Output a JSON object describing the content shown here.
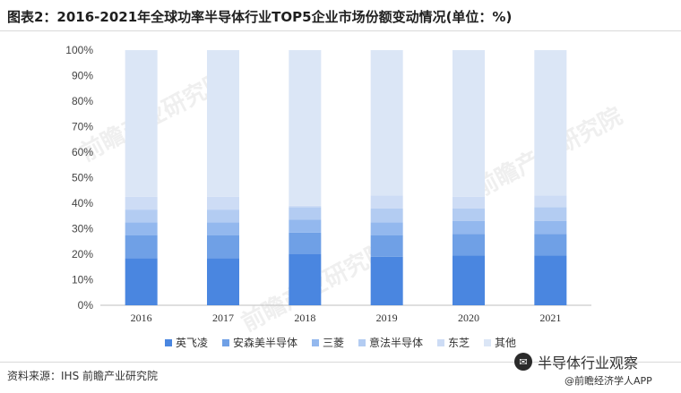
{
  "title": "图表2：2016-2021年全球功率半导体行业TOP5企业市场份额变动情况(单位：%)",
  "source": "资料来源：IHS 前瞻产业研究院",
  "badge_text": "半导体行业观察",
  "app_text": "@前瞻经济学人APP",
  "watermark": "前瞻产业研究院",
  "colors": {
    "英飞凌": "#4a86e0",
    "安森美半导体": "#6fa0e6",
    "三菱": "#93b8ee",
    "意法半导体": "#b3ccf2",
    "东芝": "#cddcf5",
    "其他": "#dbe6f6"
  },
  "chart_data": {
    "type": "bar",
    "stacked": true,
    "categories": [
      "2016",
      "2017",
      "2018",
      "2019",
      "2020",
      "2021"
    ],
    "yticks": [
      "0%",
      "10%",
      "20%",
      "30%",
      "40%",
      "50%",
      "60%",
      "70%",
      "80%",
      "90%",
      "100%"
    ],
    "ylim": [
      0,
      100
    ],
    "legend_position": "bottom",
    "grid": false,
    "series": [
      {
        "name": "英飞凌",
        "values": [
          18.5,
          18.5,
          20,
          19,
          19.5,
          19.5
        ]
      },
      {
        "name": "安森美半导体",
        "values": [
          9,
          9,
          8.5,
          8.5,
          8.5,
          8.5
        ]
      },
      {
        "name": "三菱",
        "values": [
          5,
          5,
          5,
          5,
          5,
          5
        ]
      },
      {
        "name": "意法半导体",
        "values": [
          5,
          5,
          5,
          5.5,
          5,
          5.5
        ]
      },
      {
        "name": "东芝",
        "values": [
          5,
          5,
          0.5,
          5,
          4.5,
          4.5
        ]
      },
      {
        "name": "其他",
        "values": [
          57.5,
          57.5,
          61,
          57,
          57.5,
          57
        ]
      }
    ]
  }
}
